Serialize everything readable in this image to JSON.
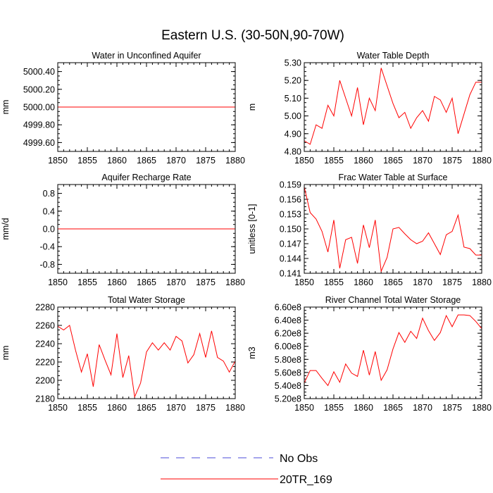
{
  "figure_title": "Eastern U.S. (30-50N,90-70W)",
  "legend": {
    "obs_label": "No Obs",
    "model_label": "20TR_169",
    "obs_color": "#4b4bd8",
    "model_color": "#ff0000"
  },
  "chart_data": [
    {
      "type": "line",
      "title": "Water in Unconfined Aquifer",
      "ylabel": "mm",
      "xlim": [
        1850,
        1880
      ],
      "ylim": [
        4999.5,
        5000.5
      ],
      "xticks": [
        1850,
        1855,
        1860,
        1865,
        1870,
        1875,
        1880
      ],
      "xtick_labels": [
        "1850",
        "1855",
        "1860",
        "1865",
        "1870",
        "1875",
        "1880"
      ],
      "yticks": [
        4999.6,
        4999.8,
        5000.0,
        5000.2,
        5000.4
      ],
      "ytick_labels": [
        "4999.60",
        "4999.80",
        "5000.00",
        "5000.20",
        "5000.40"
      ],
      "series": [
        {
          "name": "20TR_169",
          "color": "#ff0000",
          "x": [
            1850,
            1880
          ],
          "y": [
            5000.0,
            5000.0
          ]
        }
      ]
    },
    {
      "type": "line",
      "title": "Water Table Depth",
      "ylabel": "m",
      "xlim": [
        1850,
        1880
      ],
      "ylim": [
        4.8,
        5.3
      ],
      "xticks": [
        1850,
        1855,
        1860,
        1865,
        1870,
        1875,
        1880
      ],
      "xtick_labels": [
        "1850",
        "1855",
        "1860",
        "1865",
        "1870",
        "1875",
        "1880"
      ],
      "yticks": [
        4.8,
        4.9,
        5.0,
        5.1,
        5.2,
        5.3
      ],
      "ytick_labels": [
        "4.80",
        "4.90",
        "5.00",
        "5.10",
        "5.20",
        "5.30"
      ],
      "series": [
        {
          "name": "20TR_169",
          "color": "#ff0000",
          "x": [
            1850,
            1851,
            1852,
            1853,
            1854,
            1855,
            1856,
            1857,
            1858,
            1859,
            1860,
            1861,
            1862,
            1863,
            1864,
            1865,
            1866,
            1867,
            1868,
            1869,
            1870,
            1871,
            1872,
            1873,
            1874,
            1875,
            1876,
            1877,
            1878,
            1879,
            1880
          ],
          "y": [
            4.86,
            4.84,
            4.95,
            4.93,
            5.06,
            5.0,
            5.2,
            5.1,
            5.0,
            5.16,
            4.95,
            5.1,
            5.03,
            5.27,
            5.17,
            5.07,
            4.99,
            5.02,
            4.93,
            4.99,
            5.03,
            4.97,
            5.11,
            5.09,
            5.02,
            5.1,
            4.9,
            5.01,
            5.12,
            5.19,
            5.19
          ]
        }
      ]
    },
    {
      "type": "line",
      "title": "Aquifer Recharge Rate",
      "ylabel": "mm/d",
      "xlim": [
        1850,
        1880
      ],
      "ylim": [
        -1.0,
        1.0
      ],
      "xticks": [
        1850,
        1855,
        1860,
        1865,
        1870,
        1875,
        1880
      ],
      "xtick_labels": [
        "1850",
        "1855",
        "1860",
        "1865",
        "1870",
        "1875",
        "1880"
      ],
      "yticks": [
        -0.8,
        -0.4,
        0.0,
        0.4,
        0.8
      ],
      "ytick_labels": [
        "-0.8",
        "-0.4",
        "0.0",
        "0.4",
        "0.8"
      ],
      "series": [
        {
          "name": "20TR_169",
          "color": "#ff0000",
          "x": [
            1850,
            1880
          ],
          "y": [
            0.0,
            0.0
          ]
        }
      ]
    },
    {
      "type": "line",
      "title": "Frac Water Table at Surface",
      "ylabel": "unitless [0-1]",
      "xlim": [
        1850,
        1880
      ],
      "ylim": [
        0.141,
        0.159
      ],
      "xticks": [
        1850,
        1855,
        1860,
        1865,
        1870,
        1875,
        1880
      ],
      "xtick_labels": [
        "1850",
        "1855",
        "1860",
        "1865",
        "1870",
        "1875",
        "1880"
      ],
      "yticks": [
        0.141,
        0.144,
        0.147,
        0.15,
        0.153,
        0.156,
        0.159
      ],
      "ytick_labels": [
        "0.141",
        "0.144",
        "0.147",
        "0.150",
        "0.153",
        "0.156",
        "0.159"
      ],
      "series": [
        {
          "name": "20TR_169",
          "color": "#ff0000",
          "x": [
            1850,
            1851,
            1852,
            1853,
            1854,
            1855,
            1856,
            1857,
            1858,
            1859,
            1860,
            1861,
            1862,
            1863,
            1864,
            1865,
            1866,
            1867,
            1868,
            1869,
            1870,
            1871,
            1872,
            1873,
            1874,
            1875,
            1876,
            1877,
            1878,
            1879,
            1880
          ],
          "y": [
            0.1585,
            0.1533,
            0.152,
            0.1495,
            0.1453,
            0.1518,
            0.142,
            0.1478,
            0.1483,
            0.143,
            0.1508,
            0.1462,
            0.1518,
            0.1414,
            0.1442,
            0.15,
            0.1503,
            0.149,
            0.1478,
            0.147,
            0.1475,
            0.1492,
            0.147,
            0.1448,
            0.1488,
            0.1495,
            0.1528,
            0.1463,
            0.146,
            0.1447,
            0.1447
          ]
        }
      ]
    },
    {
      "type": "line",
      "title": "Total Water Storage",
      "ylabel": "mm",
      "xlim": [
        1850,
        1880
      ],
      "ylim": [
        2180,
        2280
      ],
      "xticks": [
        1850,
        1855,
        1860,
        1865,
        1870,
        1875,
        1880
      ],
      "xtick_labels": [
        "1850",
        "1855",
        "1860",
        "1865",
        "1870",
        "1875",
        "1880"
      ],
      "yticks": [
        2180,
        2200,
        2220,
        2240,
        2260,
        2280
      ],
      "ytick_labels": [
        "2180",
        "2200",
        "2220",
        "2240",
        "2260",
        "2280"
      ],
      "series": [
        {
          "name": "20TR_169",
          "color": "#ff0000",
          "x": [
            1850,
            1851,
            1852,
            1853,
            1854,
            1855,
            1856,
            1857,
            1858,
            1859,
            1860,
            1861,
            1862,
            1863,
            1864,
            1865,
            1866,
            1867,
            1868,
            1869,
            1870,
            1871,
            1872,
            1873,
            1874,
            1875,
            1876,
            1877,
            1878,
            1879,
            1880
          ],
          "y": [
            2259,
            2255,
            2260,
            2233,
            2209,
            2229,
            2193,
            2239,
            2222,
            2206,
            2251,
            2203,
            2227,
            2182,
            2197,
            2231,
            2241,
            2233,
            2241,
            2233,
            2248,
            2243,
            2219,
            2228,
            2251,
            2225,
            2254,
            2225,
            2221,
            2209,
            2221
          ]
        }
      ]
    },
    {
      "type": "line",
      "title": "River Channel Total Water Storage",
      "ylabel": "m3",
      "xlim": [
        1850,
        1880
      ],
      "ylim": [
        520000000.0,
        660000000.0
      ],
      "xticks": [
        1850,
        1855,
        1860,
        1865,
        1870,
        1875,
        1880
      ],
      "xtick_labels": [
        "1850",
        "1855",
        "1860",
        "1865",
        "1870",
        "1875",
        "1880"
      ],
      "yticks": [
        520000000.0,
        540000000.0,
        560000000.0,
        580000000.0,
        600000000.0,
        620000000.0,
        640000000.0,
        660000000.0
      ],
      "ytick_labels": [
        "5.20e8",
        "5.40e8",
        "5.60e8",
        "5.80e8",
        "6.00e8",
        "6.20e8",
        "6.40e8",
        "6.60e8"
      ],
      "series": [
        {
          "name": "20TR_169",
          "color": "#ff0000",
          "x": [
            1850,
            1851,
            1852,
            1853,
            1854,
            1855,
            1856,
            1857,
            1858,
            1859,
            1860,
            1861,
            1862,
            1863,
            1864,
            1865,
            1866,
            1867,
            1868,
            1869,
            1870,
            1871,
            1872,
            1873,
            1874,
            1875,
            1876,
            1877,
            1878,
            1879,
            1880
          ],
          "y": [
            544000000.0,
            563000000.0,
            563000000.0,
            551000000.0,
            540000000.0,
            561000000.0,
            545000000.0,
            573000000.0,
            559000000.0,
            554000000.0,
            594000000.0,
            556000000.0,
            592000000.0,
            548000000.0,
            564000000.0,
            596000000.0,
            621000000.0,
            606000000.0,
            623000000.0,
            612000000.0,
            643000000.0,
            624000000.0,
            609000000.0,
            621000000.0,
            647000000.0,
            630000000.0,
            648000000.0,
            648000000.0,
            647000000.0,
            638000000.0,
            627000000.0
          ]
        }
      ]
    }
  ]
}
